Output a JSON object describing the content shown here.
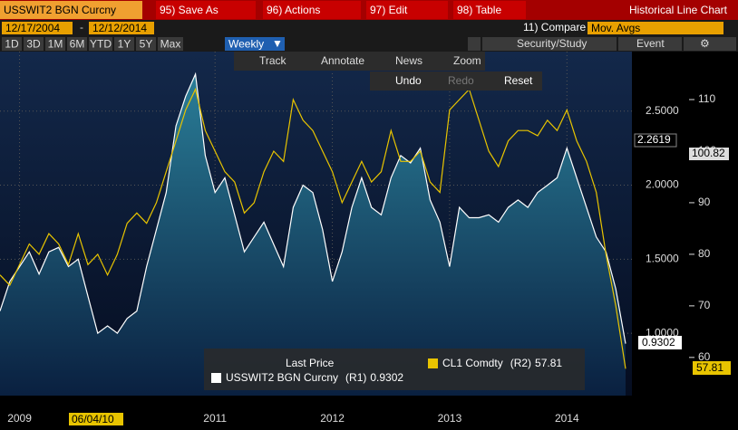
{
  "toolbar": {
    "security": "USSWIT2 BGN Curcny",
    "menu": [
      "95) Save As",
      "96) Actions",
      "97) Edit",
      "98) Table"
    ],
    "view": "Historical Line Chart"
  },
  "range": {
    "start": "12/17/2004",
    "sep": "-",
    "end": "12/12/2014",
    "compare": "11) Compare",
    "mov_avgs": "Mov. Avgs",
    "study": "Security/Study",
    "event": "Event"
  },
  "periods": [
    "1D",
    "3D",
    "1M",
    "6M",
    "YTD",
    "1Y",
    "5Y",
    "Max"
  ],
  "period_selected": "Weekly",
  "tools": [
    "Track",
    "Annotate",
    "News",
    "Zoom"
  ],
  "actions": [
    "Undo",
    "Redo",
    "Reset"
  ],
  "chart_data": {
    "type": "line",
    "legend_title": "Last Price",
    "grid": true,
    "categories": [
      null,
      null,
      "2009",
      null,
      null,
      null,
      null,
      null,
      null,
      null,
      null,
      null,
      null,
      null,
      null,
      null,
      null,
      null,
      null,
      null,
      null,
      null,
      "2011",
      null,
      null,
      null,
      null,
      null,
      null,
      null,
      null,
      null,
      null,
      null,
      "2012",
      null,
      null,
      null,
      null,
      null,
      null,
      null,
      null,
      null,
      null,
      null,
      "2013",
      null,
      null,
      null,
      null,
      null,
      null,
      null,
      null,
      null,
      null,
      null,
      "2014",
      null,
      null,
      null,
      null,
      null,
      null
    ],
    "crosshair": {
      "x": "06/04/10",
      "y": 2.2619,
      "y2": 100.82
    },
    "series": [
      {
        "name": "USSWIT2 BGN Curcny",
        "axis_label": "(R1)",
        "color": "#ffffff",
        "fill": "area",
        "axis": "y",
        "values": [
          1.15,
          1.35,
          1.45,
          1.55,
          1.4,
          1.55,
          1.58,
          1.45,
          1.5,
          1.25,
          1.0,
          1.05,
          1.0,
          1.1,
          1.15,
          1.45,
          1.7,
          1.95,
          2.4,
          2.6,
          2.75,
          2.2,
          1.95,
          2.05,
          1.8,
          1.55,
          1.65,
          1.75,
          1.6,
          1.45,
          1.85,
          2.0,
          1.95,
          1.7,
          1.35,
          1.55,
          1.85,
          2.05,
          1.85,
          1.8,
          2.05,
          2.2,
          2.15,
          2.25,
          1.9,
          1.75,
          1.45,
          1.85,
          1.78,
          1.78,
          1.8,
          1.75,
          1.85,
          1.9,
          1.85,
          1.95,
          2.0,
          2.05,
          2.25,
          2.05,
          1.85,
          1.65,
          1.55,
          1.3,
          0.9302
        ]
      },
      {
        "name": "CL1 Comdty",
        "axis_label": "(R2)",
        "color": "#e8c400",
        "axis": "y2",
        "values": [
          76,
          74,
          78,
          82,
          80,
          84,
          82,
          78,
          84,
          78,
          80,
          76,
          80,
          86,
          88,
          86,
          90,
          96,
          102,
          108,
          112,
          104,
          100,
          96,
          94,
          88,
          90,
          96,
          100,
          98,
          110,
          106,
          104,
          100,
          96,
          90,
          94,
          98,
          94,
          96,
          104,
          98,
          98,
          100,
          94,
          92,
          108,
          110,
          112,
          106,
          100,
          97,
          102,
          104,
          104,
          103,
          106,
          104,
          108,
          102,
          98,
          92,
          80,
          70,
          57.81
        ]
      }
    ],
    "ylim": [
      0.579,
      2.902
    ],
    "yticks": [
      {
        "value": 1.0,
        "label": "1.0000"
      },
      {
        "value": 1.5,
        "label": "1.5000"
      },
      {
        "value": 2.0,
        "label": "2.0000"
      },
      {
        "value": 2.5,
        "label": "2.5000"
      }
    ],
    "y2lim": [
      52.6,
      119.3
    ],
    "y2ticks": [
      60,
      70,
      80,
      90,
      100,
      110
    ]
  }
}
